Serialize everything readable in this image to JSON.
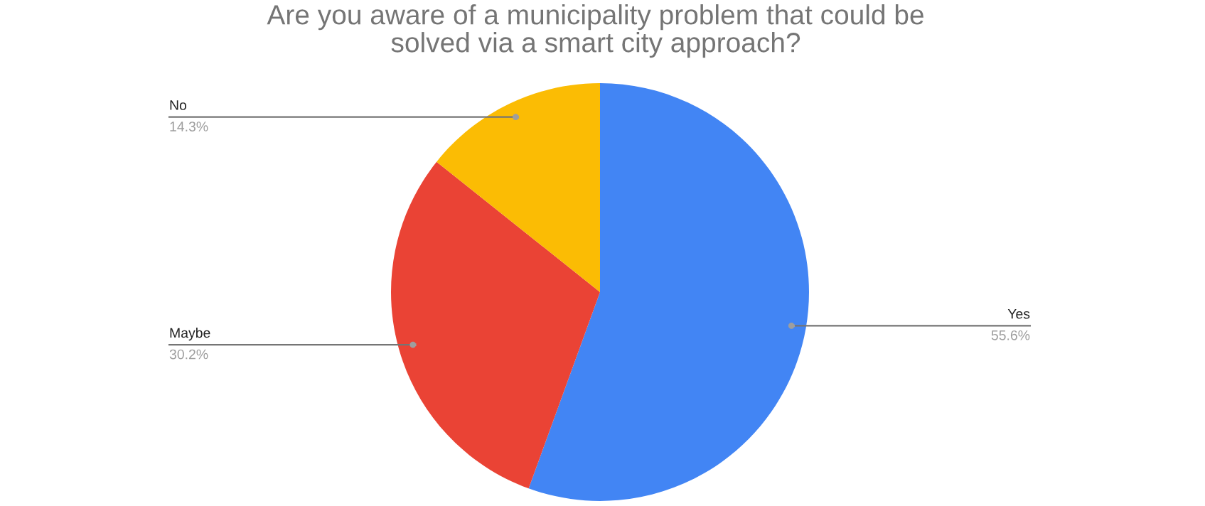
{
  "chart_data": {
    "type": "pie",
    "title": "Are you aware of a municipality problem that could be\nsolved via a smart city approach?",
    "categories": [
      "Yes",
      "Maybe",
      "No"
    ],
    "values": [
      55.6,
      30.2,
      14.3
    ],
    "value_labels": [
      "55.6%",
      "30.2%",
      "14.3%"
    ],
    "colors": [
      "#4285f4",
      "#ea4335",
      "#fbbc04"
    ]
  }
}
